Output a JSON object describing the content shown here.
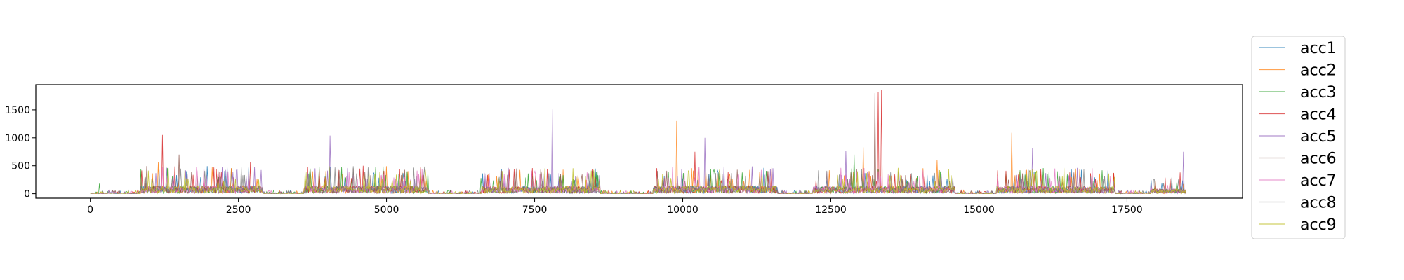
{
  "chart_data": {
    "type": "line",
    "title": "",
    "xlabel": "",
    "ylabel": "",
    "xlim": [
      -920,
      19450
    ],
    "ylim": [
      -80,
      1950
    ],
    "x_ticks": [
      0,
      2500,
      5000,
      7500,
      10000,
      12500,
      15000,
      17500
    ],
    "x_tick_labels": [
      "0",
      "2500",
      "5000",
      "7500",
      "10000",
      "12500",
      "15000",
      "17500"
    ],
    "y_ticks": [
      0,
      500,
      1000,
      1500
    ],
    "y_tick_labels": [
      "0",
      "500",
      "1000",
      "1500"
    ],
    "grid": false,
    "legend_position": "outside-right",
    "x_extent": [
      0,
      18500
    ],
    "activity_bursts": [
      {
        "x_start": 850,
        "x_end": 2900,
        "typical_level": 150
      },
      {
        "x_start": 3600,
        "x_end": 5700,
        "typical_level": 150
      },
      {
        "x_start": 6600,
        "x_end": 8600,
        "typical_level": 140
      },
      {
        "x_start": 9500,
        "x_end": 11600,
        "typical_level": 150
      },
      {
        "x_start": 12200,
        "x_end": 14600,
        "typical_level": 140
      },
      {
        "x_start": 15300,
        "x_end": 17300,
        "typical_level": 140
      },
      {
        "x_start": 17900,
        "x_end": 18500,
        "typical_level": 90
      }
    ],
    "series": [
      {
        "name": "acc1",
        "color": "#1f77b4",
        "peaks": [
          [
            1050,
            280
          ],
          [
            4300,
            300
          ],
          [
            10450,
            350
          ],
          [
            15600,
            300
          ]
        ]
      },
      {
        "name": "acc2",
        "color": "#ff7f0e",
        "peaks": [
          [
            1150,
            560
          ],
          [
            5600,
            320
          ],
          [
            9900,
            1300
          ],
          [
            13050,
            830
          ],
          [
            15550,
            1090
          ],
          [
            14300,
            600
          ]
        ]
      },
      {
        "name": "acc3",
        "color": "#2ca02c",
        "peaks": [
          [
            150,
            180
          ],
          [
            3700,
            320
          ],
          [
            6600,
            280
          ],
          [
            11000,
            380
          ],
          [
            12900,
            700
          ],
          [
            15700,
            420
          ]
        ]
      },
      {
        "name": "acc4",
        "color": "#d62728",
        "peaks": [
          [
            1220,
            1050
          ],
          [
            2700,
            560
          ],
          [
            4600,
            500
          ],
          [
            10200,
            750
          ],
          [
            13300,
            1820
          ],
          [
            13350,
            1850
          ],
          [
            18400,
            380
          ]
        ]
      },
      {
        "name": "acc5",
        "color": "#9467bd",
        "peaks": [
          [
            4050,
            1040
          ],
          [
            7800,
            1510
          ],
          [
            10380,
            1000
          ],
          [
            12750,
            770
          ],
          [
            15900,
            810
          ],
          [
            18450,
            750
          ]
        ]
      },
      {
        "name": "acc6",
        "color": "#8c564b",
        "peaks": [
          [
            1500,
            700
          ],
          [
            4200,
            420
          ],
          [
            7200,
            450
          ],
          [
            13250,
            1800
          ],
          [
            16600,
            380
          ]
        ]
      },
      {
        "name": "acc7",
        "color": "#e377c2",
        "peaks": [
          [
            1800,
            400
          ],
          [
            5300,
            300
          ],
          [
            9700,
            350
          ],
          [
            14000,
            320
          ]
        ]
      },
      {
        "name": "acc8",
        "color": "#7f7f7f",
        "peaks": [
          [
            2200,
            300
          ],
          [
            6900,
            300
          ],
          [
            11300,
            300
          ],
          [
            17100,
            260
          ]
        ]
      },
      {
        "name": "acc9",
        "color": "#bcbd22",
        "peaks": [
          [
            1600,
            420
          ],
          [
            4800,
            350
          ],
          [
            8200,
            300
          ],
          [
            12950,
            400
          ],
          [
            15800,
            350
          ]
        ]
      }
    ]
  }
}
